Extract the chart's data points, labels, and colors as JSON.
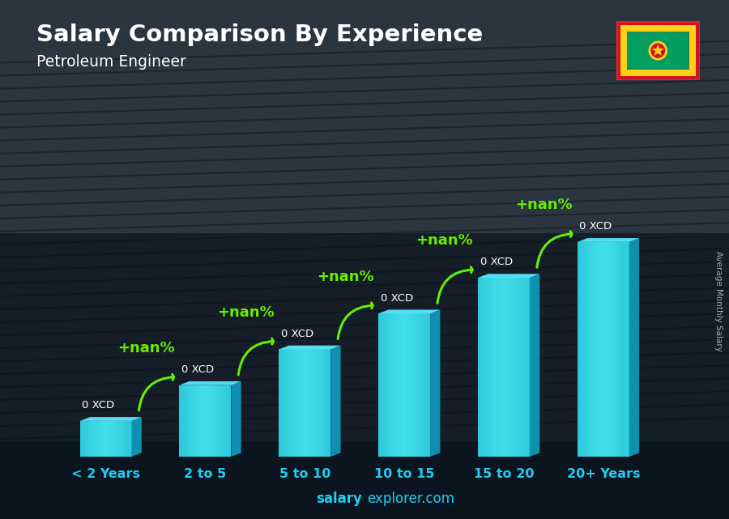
{
  "title": "Salary Comparison By Experience",
  "subtitle": "Petroleum Engineer",
  "ylabel": "Average Monthly Salary",
  "xlabel_categories": [
    "< 2 Years",
    "2 to 5",
    "5 to 10",
    "10 to 15",
    "15 to 20",
    "20+ Years"
  ],
  "bar_heights": [
    1,
    2,
    3,
    4,
    5,
    6
  ],
  "bar_color_front": "#1ec8e8",
  "bar_color_side": "#0e90b0",
  "bar_color_top": "#55ddf5",
  "bar_labels": [
    "0 XCD",
    "0 XCD",
    "0 XCD",
    "0 XCD",
    "0 XCD",
    "0 XCD"
  ],
  "pct_labels": [
    "+nan%",
    "+nan%",
    "+nan%",
    "+nan%",
    "+nan%"
  ],
  "watermark_bold": "salary",
  "watermark_regular": "explorer.com",
  "bg_dark": "#1a2535",
  "bg_mid": "#2a3d55",
  "bg_light": "#3a5068",
  "title_color": "#ffffff",
  "subtitle_color": "#ffffff",
  "xtick_color": "#22ccee",
  "label_color": "#ffffff",
  "pct_color": "#66ee00",
  "watermark_color": "#22ccee",
  "ylabel_color": "#aaaaaa",
  "flag_border_color": "#ee2222",
  "flag_yellow": "#fcd116",
  "flag_red": "#ce1126",
  "flag_green": "#009e60",
  "figsize": [
    9.0,
    6.41
  ]
}
